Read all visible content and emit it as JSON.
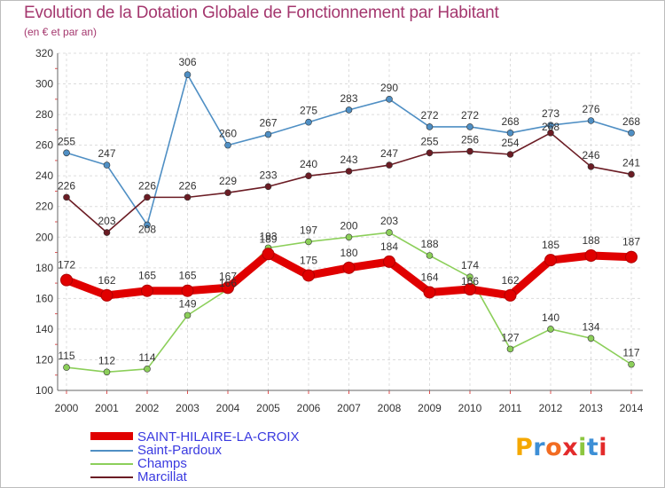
{
  "title": "Evolution de la Dotation Globale de Fonctionnement par Habitant",
  "subtitle": "(en € et par an)",
  "logo": {
    "letters": [
      "P",
      "r",
      "o",
      "x",
      "i",
      "t",
      "i"
    ],
    "colors": [
      "#f5a800",
      "#3d8fd6",
      "#f26c22",
      "#e32b2b",
      "#8cc63f",
      "#3d8fd6",
      "#e32b2b"
    ]
  },
  "chart_data": {
    "type": "line",
    "title": "Evolution de la Dotation Globale de Fonctionnement par Habitant",
    "ylabel": "(en € et par an)",
    "xlabel": "",
    "x": [
      "2000",
      "2001",
      "2002",
      "2003",
      "2004",
      "2005",
      "2006",
      "2007",
      "2008",
      "2009",
      "2010",
      "2011",
      "2012",
      "2013",
      "2014"
    ],
    "ylim": [
      100,
      320
    ],
    "yticks": [
      "100",
      "120",
      "140",
      "160",
      "180",
      "200",
      "220",
      "240",
      "260",
      "280",
      "300",
      "320"
    ],
    "grid": true,
    "legend": "bottom-left",
    "series": [
      {
        "name": "Saint-Pardoux",
        "color": "#4f8fc4",
        "values": [
          255,
          247,
          208,
          306,
          260,
          267,
          275,
          283,
          290,
          272,
          272,
          268,
          273,
          276,
          268
        ],
        "labels": [
          "255",
          "247",
          "208",
          "306",
          "260",
          "267",
          "275",
          "283",
          "290",
          "272",
          "272",
          "268",
          "273",
          "276",
          "268"
        ]
      },
      {
        "name": "Marcillat",
        "color": "#6b1c24",
        "values": [
          226,
          203,
          226,
          226,
          229,
          233,
          240,
          243,
          247,
          255,
          256,
          254,
          268,
          246,
          241
        ],
        "labels": [
          "226",
          "203",
          "226",
          "226",
          "229",
          "233",
          "240",
          "243",
          "247",
          "255",
          "256",
          "254",
          "268",
          "246",
          "241"
        ]
      },
      {
        "name": "Champs",
        "color": "#8ccf5a",
        "values": [
          115,
          112,
          114,
          149,
          166,
          193,
          197,
          200,
          203,
          188,
          174,
          127,
          140,
          134,
          117
        ],
        "labels": [
          "115",
          "112",
          "114",
          "149",
          "166",
          "193",
          "197",
          "200",
          "203",
          "188",
          "174",
          "127",
          "140",
          "134",
          "117"
        ]
      },
      {
        "name": "SAINT-HILAIRE-LA-CROIX",
        "color": "#e00000",
        "values": [
          172,
          162,
          165,
          165,
          167,
          189,
          175,
          180,
          184,
          164,
          166,
          162,
          185,
          188,
          187
        ],
        "labels": [
          "172",
          "162",
          "165",
          "165",
          "167",
          "189",
          "175",
          "180",
          "184",
          "164",
          "166",
          "162",
          "185",
          "188",
          "187"
        ]
      }
    ],
    "legend_order": [
      "SAINT-HILAIRE-LA-CROIX",
      "Saint-Pardoux",
      "Champs",
      "Marcillat"
    ]
  }
}
